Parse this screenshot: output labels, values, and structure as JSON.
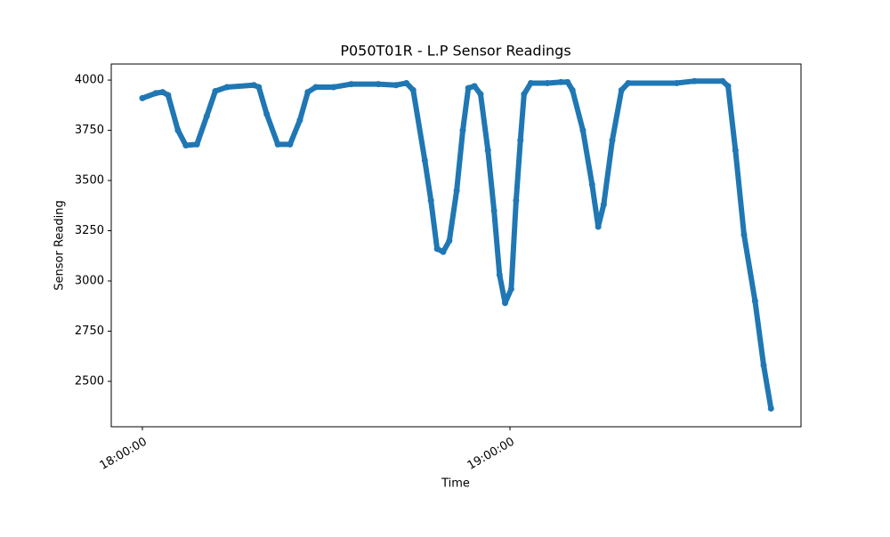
{
  "chart_data": {
    "type": "line",
    "title": "P050T01R - L.P Sensor Readings",
    "x_label": "Time",
    "y_label": "Sensor Reading",
    "color": "#1f77b4",
    "markers": true,
    "x": [
      "18:00:00",
      "18:02:12",
      "18:03:18",
      "18:04:12",
      "18:05:48",
      "18:07:06",
      "18:08:54",
      "18:10:30",
      "18:11:54",
      "18:13:48",
      "18:18:12",
      "18:19:00",
      "18:20:18",
      "18:22:06",
      "18:24:06",
      "18:25:42",
      "18:27:00",
      "18:28:18",
      "18:31:12",
      "18:34:06",
      "18:38:30",
      "18:41:24",
      "18:43:06",
      "18:44:12",
      "18:46:06",
      "18:47:06",
      "18:48:06",
      "18:49:06",
      "18:50:06",
      "18:51:18",
      "18:52:18",
      "18:53:12",
      "18:54:12",
      "18:55:12",
      "18:56:24",
      "18:57:24",
      "18:58:18",
      "18:59:12",
      "19:00:12",
      "19:01:00",
      "19:01:42",
      "19:02:18",
      "19:03:24",
      "19:06:06",
      "19:08:18",
      "19:09:24",
      "19:10:12",
      "19:11:54",
      "19:13:24",
      "19:14:24",
      "19:15:18",
      "19:16:42",
      "19:18:12",
      "19:19:18",
      "19:27:12",
      "19:30:06",
      "19:34:42",
      "19:35:36",
      "19:36:48",
      "19:38:12",
      "19:40:00",
      "19:41:24",
      "19:42:36"
    ],
    "values": [
      3910,
      3935,
      3940,
      3925,
      3750,
      3675,
      3680,
      3820,
      3945,
      3965,
      3975,
      3965,
      3830,
      3680,
      3680,
      3800,
      3940,
      3965,
      3965,
      3980,
      3980,
      3975,
      3985,
      3950,
      3600,
      3400,
      3160,
      3145,
      3200,
      3450,
      3750,
      3960,
      3970,
      3930,
      3650,
      3350,
      3030,
      2890,
      2960,
      3400,
      3700,
      3930,
      3985,
      3985,
      3990,
      3990,
      3950,
      3750,
      3480,
      3270,
      3380,
      3700,
      3950,
      3985,
      3985,
      3995,
      3995,
      3970,
      3650,
      3230,
      2900,
      2580,
      2365
    ],
    "xlim": [
      "17:54:55",
      "19:47:30"
    ],
    "xticks": [
      "18:00:00",
      "19:00:00"
    ],
    "ylim": [
      2274,
      4080
    ],
    "yticks": [
      2500,
      2750,
      3000,
      3250,
      3500,
      3750,
      4000
    ]
  }
}
